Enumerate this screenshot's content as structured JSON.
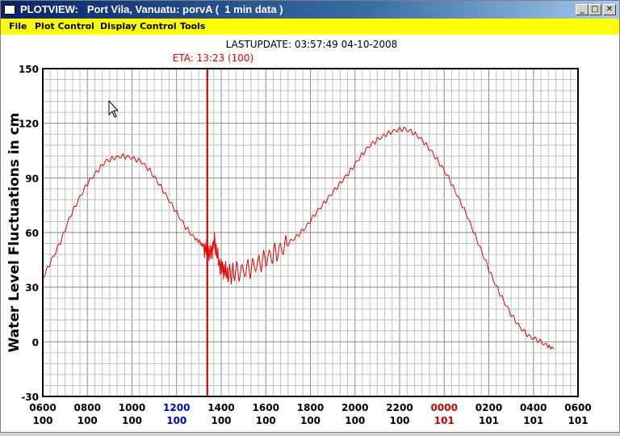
{
  "window": {
    "title": "PLOTVIEW:   Port Vila, Vanuatu: porvA (  1 min data )",
    "min_icon": "minimize-icon",
    "max_icon": "maximize-icon",
    "close_icon": "close-icon"
  },
  "menu": {
    "file": "File",
    "plot_control": "Plot Control",
    "display_control": "Display Control",
    "tools": "Tools"
  },
  "header": {
    "lastupdate": "LASTUPDATE: 03:57:49  04-10-2008",
    "eta": "ETA: 13:23 (100)"
  },
  "colors": {
    "trace": "#e00000",
    "eta": "#e00000",
    "menu_bg": "#ffff00",
    "blue_tick": "#0000cc",
    "red_tick": "#cc0000"
  },
  "chart_data": {
    "type": "line",
    "ylabel": "Water Level Fluctuations in cm",
    "ylim": [
      -30,
      150
    ],
    "yticks": [
      "150",
      "120",
      "90",
      "60",
      "30",
      "0",
      "-30"
    ],
    "xticks_time": [
      "0600",
      "0800",
      "1000",
      "1200",
      "1400",
      "1600",
      "1800",
      "2000",
      "2200",
      "0000",
      "0200",
      "0400",
      "0600"
    ],
    "xticks_day": [
      "100",
      "100",
      "100",
      "100",
      "100",
      "100",
      "100",
      "100",
      "100",
      "101",
      "101",
      "101",
      "101"
    ],
    "xtick_colors": [
      "black",
      "black",
      "black",
      "blue",
      "black",
      "black",
      "black",
      "black",
      "black",
      "red",
      "black",
      "black",
      "black"
    ],
    "eta_marker_hours": 7.38,
    "series": [
      {
        "points": [
          [
            0,
            35
          ],
          [
            0.4,
            45
          ],
          [
            0.8,
            55
          ],
          [
            1.2,
            68
          ],
          [
            1.6,
            78
          ],
          [
            2,
            87
          ],
          [
            2.4,
            93
          ],
          [
            2.8,
            99
          ],
          [
            3.2,
            101
          ],
          [
            3.6,
            102
          ],
          [
            4,
            101
          ],
          [
            4.4,
            99
          ],
          [
            4.8,
            94
          ],
          [
            5.2,
            87
          ],
          [
            5.6,
            79
          ],
          [
            6,
            71
          ],
          [
            6.4,
            63
          ],
          [
            6.8,
            57
          ],
          [
            7.1,
            54
          ],
          [
            7.3,
            51
          ],
          [
            7.5,
            48
          ],
          [
            7.7,
            55
          ],
          [
            7.9,
            43
          ],
          [
            8.1,
            40
          ],
          [
            8.3,
            37
          ],
          [
            8.6,
            38
          ],
          [
            9,
            39
          ],
          [
            9.4,
            41
          ],
          [
            9.8,
            44
          ],
          [
            10.2,
            47
          ],
          [
            10.6,
            50
          ],
          [
            11,
            54
          ],
          [
            11.4,
            58
          ],
          [
            11.8,
            63
          ],
          [
            12.2,
            70
          ],
          [
            12.6,
            76
          ],
          [
            13,
            82
          ],
          [
            13.4,
            88
          ],
          [
            13.8,
            94
          ],
          [
            14.2,
            101
          ],
          [
            14.6,
            107
          ],
          [
            15,
            111
          ],
          [
            15.4,
            114
          ],
          [
            15.8,
            116
          ],
          [
            16.2,
            117
          ],
          [
            16.6,
            115
          ],
          [
            17,
            111
          ],
          [
            17.4,
            105
          ],
          [
            17.8,
            98
          ],
          [
            18.2,
            90
          ],
          [
            18.6,
            80
          ],
          [
            19,
            70
          ],
          [
            19.4,
            58
          ],
          [
            19.8,
            46
          ],
          [
            20.2,
            34
          ],
          [
            20.6,
            24
          ],
          [
            21,
            15
          ],
          [
            21.4,
            8
          ],
          [
            21.8,
            3
          ],
          [
            22.2,
            1
          ],
          [
            22.6,
            -2
          ],
          [
            22.9,
            -4
          ]
        ]
      }
    ]
  }
}
